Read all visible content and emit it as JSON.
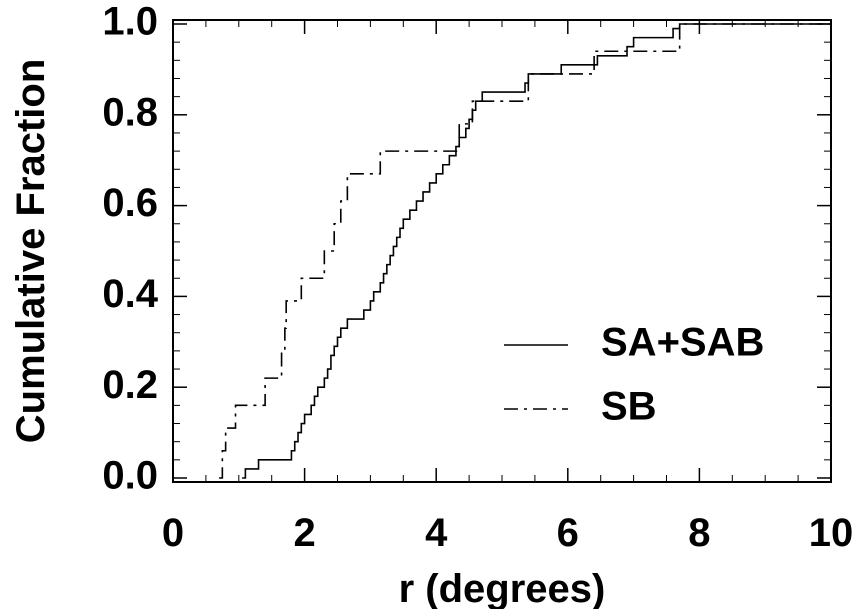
{
  "chart_data": {
    "type": "line",
    "title": "",
    "xlabel": "r (degrees)",
    "ylabel": "Cumulative Fraction",
    "xlim": [
      0,
      10
    ],
    "ylim": [
      0,
      1
    ],
    "x_ticks": [
      0,
      2,
      4,
      6,
      8,
      10
    ],
    "y_ticks": [
      0.0,
      0.2,
      0.4,
      0.6,
      0.8,
      1.0
    ],
    "x_tick_labels": [
      "0",
      "2",
      "4",
      "6",
      "8",
      "10"
    ],
    "y_tick_labels": [
      "0.0",
      "0.2",
      "0.4",
      "0.6",
      "0.8",
      "1.0"
    ],
    "grid": false,
    "legend_position": "lower-right",
    "series": [
      {
        "name": "SA+SAB",
        "style": "solid",
        "color": "#000000",
        "steps": [
          [
            1.05,
            0.0
          ],
          [
            1.1,
            0.02
          ],
          [
            1.3,
            0.04
          ],
          [
            1.75,
            0.04
          ],
          [
            1.8,
            0.06
          ],
          [
            1.85,
            0.08
          ],
          [
            1.9,
            0.1
          ],
          [
            1.95,
            0.12
          ],
          [
            2.0,
            0.14
          ],
          [
            2.1,
            0.16
          ],
          [
            2.15,
            0.18
          ],
          [
            2.2,
            0.2
          ],
          [
            2.3,
            0.22
          ],
          [
            2.35,
            0.24
          ],
          [
            2.4,
            0.27
          ],
          [
            2.45,
            0.29
          ],
          [
            2.5,
            0.31
          ],
          [
            2.55,
            0.33
          ],
          [
            2.65,
            0.35
          ],
          [
            2.9,
            0.37
          ],
          [
            3.0,
            0.39
          ],
          [
            3.05,
            0.41
          ],
          [
            3.15,
            0.43
          ],
          [
            3.2,
            0.45
          ],
          [
            3.25,
            0.47
          ],
          [
            3.3,
            0.49
          ],
          [
            3.35,
            0.51
          ],
          [
            3.4,
            0.53
          ],
          [
            3.45,
            0.55
          ],
          [
            3.5,
            0.57
          ],
          [
            3.6,
            0.59
          ],
          [
            3.7,
            0.61
          ],
          [
            3.8,
            0.63
          ],
          [
            3.9,
            0.65
          ],
          [
            4.0,
            0.67
          ],
          [
            4.1,
            0.69
          ],
          [
            4.2,
            0.71
          ],
          [
            4.3,
            0.73
          ],
          [
            4.35,
            0.75
          ],
          [
            4.45,
            0.77
          ],
          [
            4.5,
            0.79
          ],
          [
            4.55,
            0.81
          ],
          [
            4.6,
            0.83
          ],
          [
            4.7,
            0.85
          ],
          [
            5.35,
            0.87
          ],
          [
            5.4,
            0.89
          ],
          [
            5.9,
            0.91
          ],
          [
            6.45,
            0.93
          ],
          [
            6.9,
            0.95
          ],
          [
            7.0,
            0.97
          ],
          [
            7.6,
            0.99
          ],
          [
            7.7,
            1.0
          ]
        ]
      },
      {
        "name": "SB",
        "style": "dash-dot",
        "color": "#000000",
        "steps": [
          [
            0.7,
            0.0
          ],
          [
            0.75,
            0.06
          ],
          [
            0.8,
            0.11
          ],
          [
            0.95,
            0.16
          ],
          [
            1.4,
            0.22
          ],
          [
            1.65,
            0.28
          ],
          [
            1.7,
            0.33
          ],
          [
            1.72,
            0.39
          ],
          [
            1.95,
            0.44
          ],
          [
            2.3,
            0.5
          ],
          [
            2.45,
            0.56
          ],
          [
            2.55,
            0.61
          ],
          [
            2.65,
            0.67
          ],
          [
            3.15,
            0.72
          ],
          [
            4.35,
            0.78
          ],
          [
            4.55,
            0.83
          ],
          [
            5.4,
            0.89
          ],
          [
            6.4,
            0.94
          ],
          [
            7.7,
            1.0
          ]
        ]
      }
    ]
  }
}
